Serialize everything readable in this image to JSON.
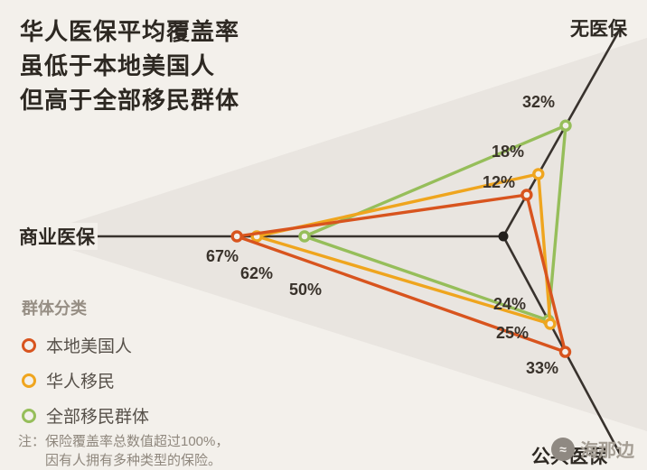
{
  "title": {
    "line1": "华人医保平均覆盖率",
    "line2": "虽低于本地美国人",
    "line3": "但高于全部移民群体"
  },
  "axis_labels": {
    "top": "无医保",
    "left": "商业医保",
    "bottom": "公共医保"
  },
  "legend": {
    "title": "群体分类",
    "items": [
      {
        "label": "本地美国人",
        "color": "#d8541e"
      },
      {
        "label": "华人移民",
        "color": "#efa51e"
      },
      {
        "label": "全部移民群体",
        "color": "#96be5a"
      }
    ]
  },
  "note": {
    "line1": "注：保险覆盖率总数值超过100%，",
    "line2": "因有人拥有多种类型的保险。"
  },
  "watermark": {
    "text": "海那边",
    "logo": "wave-logo"
  },
  "chart_data": {
    "type": "radar",
    "unit": "%",
    "axes": [
      "无医保",
      "商业医保",
      "公共医保"
    ],
    "series": [
      {
        "name": "本地美国人",
        "color": "#d8541e",
        "values": [
          12,
          67,
          33
        ],
        "labels": [
          "12%",
          "67%",
          "33%"
        ]
      },
      {
        "name": "华人移民",
        "color": "#efa51e",
        "values": [
          18,
          62,
          25
        ],
        "labels": [
          "18%",
          "62%",
          "25%"
        ]
      },
      {
        "name": "全部移民群体",
        "color": "#96be5a",
        "values": [
          32,
          50,
          24
        ],
        "labels": [
          "32%",
          "50%",
          "24%"
        ]
      }
    ],
    "axis_color": "#38322d",
    "legend_position": "bottom-left",
    "grid": false,
    "note": "保险覆盖率总数值超过100%，因有人拥有多种类型的保险。"
  }
}
